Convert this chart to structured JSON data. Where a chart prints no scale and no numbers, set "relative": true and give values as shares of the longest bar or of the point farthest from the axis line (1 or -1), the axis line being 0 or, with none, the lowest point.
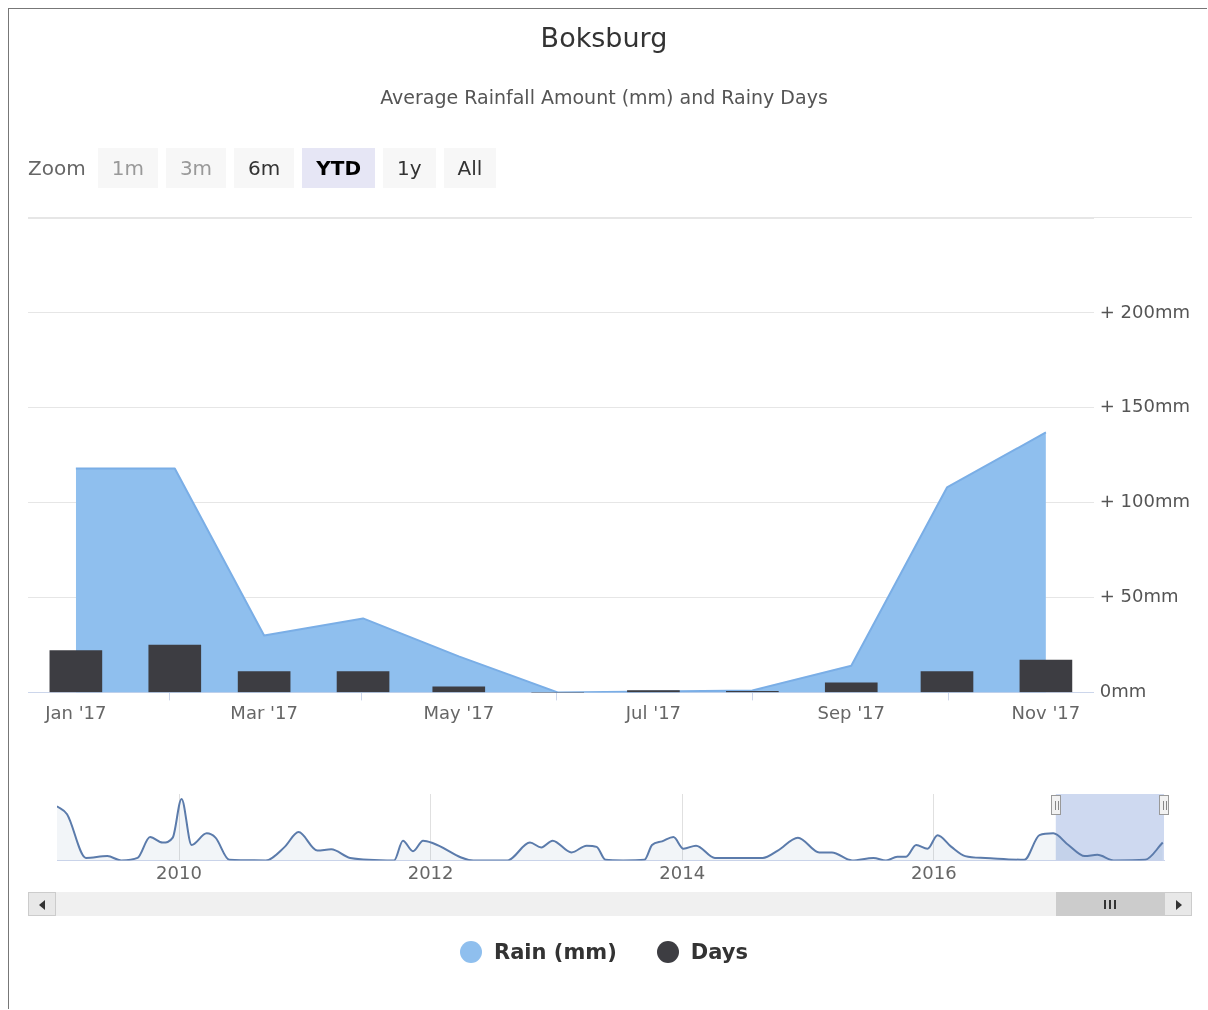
{
  "chart_data": [
    {
      "type": "area",
      "title": "Boksburg",
      "subtitle": "Average Rainfall Amount (mm) and Rainy Days",
      "annotations": [
        "Zoom",
        "1m",
        "3m",
        "6m",
        "YTD",
        "1y",
        "All"
      ],
      "x": [
        "2017-01",
        "2017-02",
        "2017-03",
        "2017-04",
        "2017-05",
        "2017-06",
        "2017-07",
        "2017-08",
        "2017-09",
        "2017-10",
        "2017-11"
      ],
      "xlim": [
        "2016-12-17",
        "2017-11-16"
      ],
      "xticks": [
        {
          "value": "2017-01",
          "label": "Jan '17"
        },
        {
          "value": "2017-03",
          "label": "Mar '17"
        },
        {
          "value": "2017-05",
          "label": "May '17"
        },
        {
          "value": "2017-07",
          "label": "Jul '17"
        },
        {
          "value": "2017-09",
          "label": "Sep '17"
        },
        {
          "value": "2017-11",
          "label": "Nov '17"
        }
      ],
      "ylim": [
        0,
        250
      ],
      "yticks": [
        {
          "value": 0,
          "label": "0mm"
        },
        {
          "value": 50,
          "label": "+ 50mm"
        },
        {
          "value": 100,
          "label": "+ 100mm"
        },
        {
          "value": 150,
          "label": "+ 150mm"
        },
        {
          "value": 200,
          "label": "+ 200mm"
        },
        {
          "value": 250,
          "label": null
        }
      ],
      "series": [
        {
          "name": "Rain (mm)",
          "color": "#8fbfee",
          "values": [
            118,
            118,
            30,
            39,
            19,
            0,
            0.5,
            1,
            14,
            108,
            137
          ]
        },
        {
          "name": "Days",
          "type": "bar",
          "color": "#3d3d42",
          "values": [
            22,
            25,
            11,
            11,
            3,
            0,
            1,
            0.5,
            5,
            11,
            17
          ]
        }
      ],
      "grid": "y",
      "legend": "bottom"
    },
    {
      "type": "line",
      "relative": true,
      "tick_labels": "x",
      "x": [
        2009.03,
        2009.11,
        2009.26,
        2009.43,
        2009.54,
        2009.67,
        2009.77,
        2009.87,
        2009.95,
        2010.02,
        2010.1,
        2010.22,
        2010.29,
        2010.4,
        2010.69,
        2010.84,
        2010.95,
        2011.1,
        2011.21,
        2011.36,
        2011.71,
        2011.78,
        2011.86,
        2011.94,
        2012.02,
        2012.34,
        2012.61,
        2012.79,
        2012.88,
        2012.97,
        2013.12,
        2013.24,
        2013.32,
        2013.39,
        2013.53,
        2013.7,
        2013.76,
        2013.84,
        2013.93,
        2014.01,
        2014.11,
        2014.26,
        2014.64,
        2014.76,
        2014.92,
        2015.09,
        2015.19,
        2015.35,
        2015.52,
        2015.62,
        2015.71,
        2015.78,
        2015.86,
        2015.95,
        2016.03,
        2016.14,
        2016.25,
        2016.41,
        2016.72,
        2016.84,
        2016.95,
        2017.07,
        2017.2,
        2017.3,
        2017.43,
        2017.68,
        2017.82
      ],
      "xlim": [
        2009.03,
        2017.83
      ],
      "xticks": [
        2010,
        2012,
        2014,
        2016
      ],
      "series": [
        {
          "color": "#5b7bab",
          "values": [
            0.88,
            0.75,
            0.04,
            0.07,
            0,
            0.04,
            0.38,
            0.29,
            0.37,
            1,
            0.25,
            0.44,
            0.37,
            0.01,
            0,
            0.22,
            0.46,
            0.16,
            0.18,
            0.04,
            0,
            0.32,
            0.15,
            0.32,
            0.28,
            0,
            0,
            0.29,
            0.21,
            0.32,
            0.13,
            0.24,
            0.22,
            0.01,
            0,
            0.01,
            0.25,
            0.31,
            0.38,
            0.19,
            0.24,
            0.04,
            0.04,
            0.16,
            0.37,
            0.13,
            0.13,
            0,
            0.04,
            0,
            0.06,
            0.06,
            0.25,
            0.19,
            0.41,
            0.22,
            0.07,
            0.04,
            0.01,
            0.41,
            0.44,
            0.25,
            0.07,
            0.09,
            0,
            0.01,
            0.29
          ]
        }
      ],
      "bands": [
        {
          "axis": "x",
          "from": 2016.97,
          "to": 2017.83,
          "color": "#c9d5ee"
        }
      ],
      "grid": "x",
      "legend": false
    }
  ]
}
